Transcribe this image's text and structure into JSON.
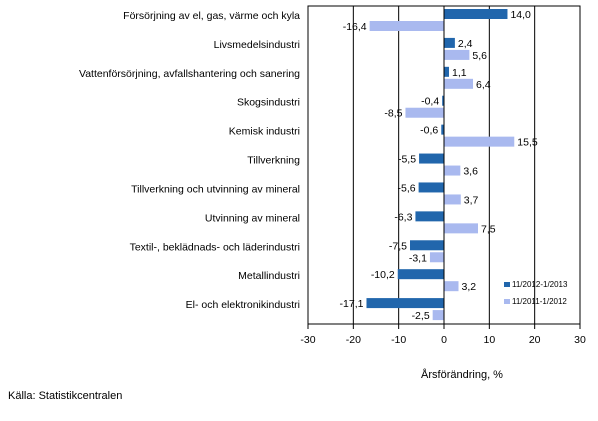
{
  "chart_data": {
    "type": "bar",
    "orientation": "horizontal",
    "categories": [
      "Försörjning av el, gas, värme och kyla",
      "Livsmedelsindustri",
      "Vattenförsörjning, avfallshantering och sanering",
      "Skogsindustri",
      "Kemisk industri",
      "Tillverkning",
      "Tillverkning och utvinning av mineral",
      "Utvinning av mineral",
      "Textil-, beklädnads- och läderindustri",
      "Metallindustri",
      "El- och elektronikindustri"
    ],
    "series": [
      {
        "name": "11/2012-1/2013",
        "color": "#2166ac",
        "values": [
          14.0,
          2.4,
          1.1,
          -0.4,
          -0.6,
          -5.5,
          -5.6,
          -6.3,
          -7.5,
          -10.2,
          -17.1
        ],
        "labels": [
          "14,0",
          "2,4",
          "1,1",
          "-0,4",
          "-0,6",
          "-5,5",
          "-5,6",
          "-6,3",
          "-7,5",
          "-10,2",
          "-17,1"
        ]
      },
      {
        "name": "11/2011-1/2012",
        "color": "#a9b9ef",
        "values": [
          -16.4,
          5.6,
          6.4,
          -8.5,
          15.5,
          3.6,
          3.7,
          7.5,
          -3.1,
          3.2,
          -2.5
        ],
        "labels": [
          "-16,4",
          "5,6",
          "6,4",
          "-8,5",
          "15,5",
          "3,6",
          "3,7",
          "7,5",
          "-3,1",
          "3,2",
          "-2,5"
        ]
      }
    ],
    "xlim": [
      -30,
      30
    ],
    "xticks": [
      -30,
      -20,
      -10,
      0,
      10,
      20,
      30
    ],
    "xtick_labels": [
      "-30",
      "-20",
      "-10",
      "0",
      "10",
      "20",
      "30"
    ],
    "xlabel": "Årsförändring, %",
    "grid": "vertical",
    "legend_position": "bottom-right"
  },
  "source": "Källa: Statistikcentralen"
}
